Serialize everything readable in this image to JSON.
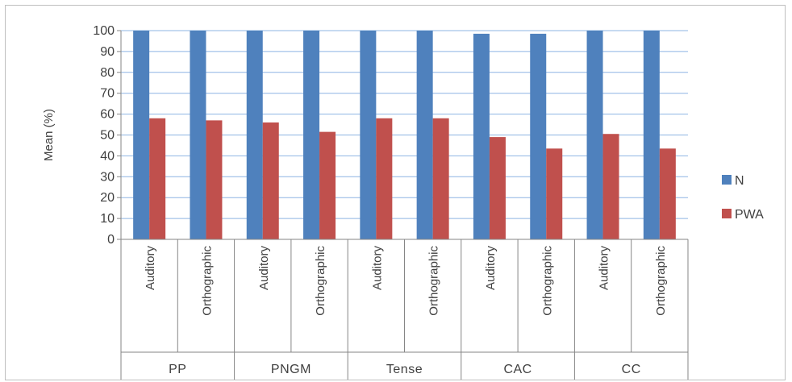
{
  "chart_data": {
    "type": "bar",
    "ylabel": "Mean (%)",
    "ylim": [
      0,
      100
    ],
    "yticks": [
      0,
      10,
      20,
      30,
      40,
      50,
      60,
      70,
      80,
      90,
      100
    ],
    "grid": true,
    "legend_position": "right",
    "groups": [
      "PP",
      "PNGM",
      "Tense",
      "CAC",
      "CC"
    ],
    "subcategories": [
      "Auditory",
      "Orthographic"
    ],
    "categories": [
      "PP Auditory",
      "PP Orthographic",
      "PNGM Auditory",
      "PNGM Orthographic",
      "Tense Auditory",
      "Tense Orthographic",
      "CAC Auditory",
      "CAC Orthographic",
      "CC Auditory",
      "CC Orthographic"
    ],
    "series": [
      {
        "name": "N",
        "color": "#4f81bd",
        "values": [
          100,
          100,
          100,
          100,
          100,
          100,
          98.5,
          98.5,
          100,
          100
        ]
      },
      {
        "name": "PWA",
        "color": "#c0504d",
        "values": [
          58,
          57,
          56,
          51.5,
          58,
          58,
          49,
          43.5,
          50.5,
          43.5
        ]
      }
    ]
  }
}
